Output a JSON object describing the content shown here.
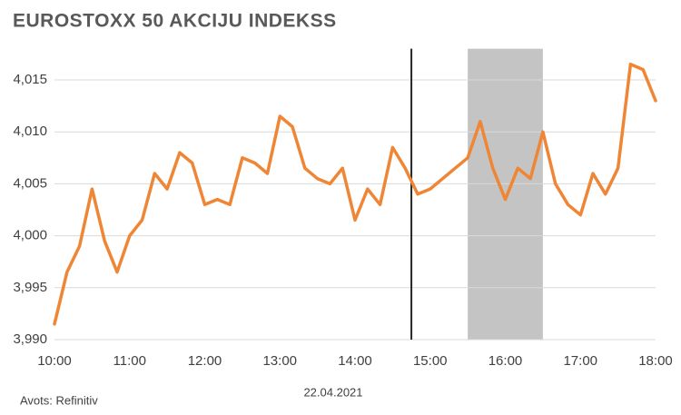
{
  "chart_data": {
    "type": "line",
    "title": "EUROSTOXX 50 AKCIJU INDEKSS",
    "x_label": "22.04.2021",
    "source": "Avots: Refinitiv",
    "x": [
      600,
      610,
      620,
      630,
      640,
      650,
      660,
      670,
      680,
      690,
      700,
      710,
      720,
      730,
      740,
      750,
      760,
      770,
      780,
      790,
      800,
      810,
      820,
      830,
      840,
      850,
      860,
      870,
      880,
      890,
      900,
      910,
      920,
      930,
      940,
      950,
      960,
      970,
      980,
      990,
      1000,
      1010,
      1020,
      1030,
      1040,
      1050,
      1060,
      1070,
      1080
    ],
    "values": [
      3991.5,
      3996.5,
      3999,
      4004.5,
      3999.5,
      3996.5,
      4000,
      4001.5,
      4006,
      4004.5,
      4008,
      4007,
      4003,
      4003.5,
      4003,
      4007.5,
      4007,
      4006,
      4011.5,
      4010.5,
      4006.5,
      4005.5,
      4005,
      4006.5,
      4001.5,
      4004.5,
      4003,
      4008.5,
      4006.5,
      4004,
      4004.5,
      4005.5,
      4006.5,
      4007.5,
      4011,
      4006.5,
      4003.5,
      4006.5,
      4005.5,
      4010,
      4005,
      4003,
      4002,
      4006,
      4004,
      4006.5,
      4016.5,
      4016,
      4013
    ],
    "color": "#ef8635",
    "xlim": [
      600,
      1080
    ],
    "xticks": [
      {
        "value": 600,
        "label": "10:00"
      },
      {
        "value": 660,
        "label": "11:00"
      },
      {
        "value": 720,
        "label": "12:00"
      },
      {
        "value": 780,
        "label": "13:00"
      },
      {
        "value": 840,
        "label": "14:00"
      },
      {
        "value": 900,
        "label": "15:00"
      },
      {
        "value": 960,
        "label": "16:00"
      },
      {
        "value": 1020,
        "label": "17:00"
      },
      {
        "value": 1080,
        "label": "18:00"
      }
    ],
    "ylim": [
      3990,
      4018
    ],
    "yticks": [
      {
        "value": 3990,
        "label": "3,990"
      },
      {
        "value": 3995,
        "label": "3,995"
      },
      {
        "value": 4000,
        "label": "4,000"
      },
      {
        "value": 4005,
        "label": "4,005"
      },
      {
        "value": 4010,
        "label": "4,010"
      },
      {
        "value": 4015,
        "label": "4,015"
      }
    ],
    "grid": true,
    "vline_x": 885,
    "shaded_range": [
      930,
      990
    ]
  }
}
